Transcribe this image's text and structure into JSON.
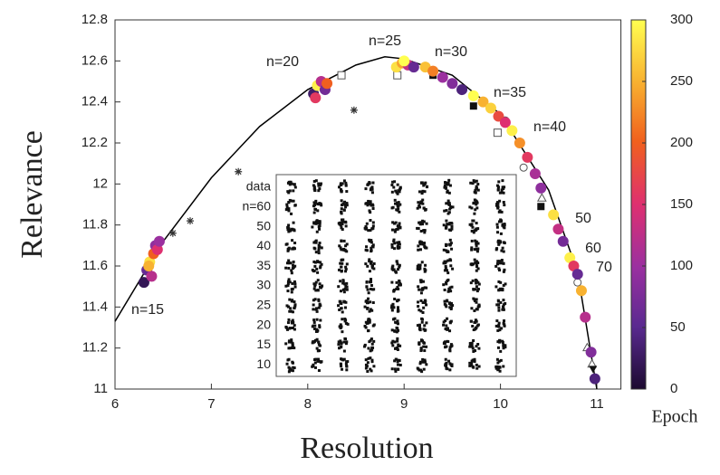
{
  "chart_data": {
    "type": "scatter",
    "x_label": "Resolution",
    "y_label": "Relevance",
    "xlim": [
      6,
      11.25
    ],
    "ylim": [
      11,
      12.8
    ],
    "xticks": [
      6,
      7,
      8,
      9,
      10,
      11
    ],
    "yticks": [
      11,
      11.2,
      11.4,
      11.6,
      11.8,
      12,
      12.2,
      12.4,
      12.6,
      12.8
    ],
    "curve": {
      "color": "#000000",
      "x": [
        6,
        6.5,
        7,
        7.5,
        8,
        8.5,
        8.8,
        9,
        9.5,
        10,
        10.5,
        10.8,
        11
      ],
      "y": [
        11.33,
        11.72,
        12.03,
        12.28,
        12.46,
        12.58,
        12.62,
        12.61,
        12.53,
        12.34,
        11.97,
        11.57,
        11.0
      ]
    },
    "points": {
      "x": [
        6.3,
        6.33,
        6.36,
        6.38,
        6.4,
        6.42,
        6.44,
        6.46,
        6.35,
        8.06,
        8.1,
        8.14,
        8.18,
        8.2,
        8.08,
        8.92,
        8.98,
        9.04,
        9.1,
        9.0,
        9.22,
        9.3,
        9.4,
        9.5,
        9.6,
        9.72,
        9.82,
        9.9,
        9.98,
        10.05,
        10.12,
        10.2,
        10.28,
        10.36,
        10.42,
        10.55,
        10.6,
        10.65,
        10.72,
        10.76,
        10.8,
        10.84,
        10.88,
        10.94,
        10.98
      ],
      "y": [
        11.52,
        11.58,
        11.62,
        11.55,
        11.66,
        11.7,
        11.68,
        11.72,
        11.6,
        12.44,
        12.48,
        12.5,
        12.46,
        12.49,
        12.42,
        12.57,
        12.59,
        12.58,
        12.57,
        12.6,
        12.57,
        12.55,
        12.52,
        12.49,
        12.46,
        12.43,
        12.4,
        12.37,
        12.33,
        12.3,
        12.26,
        12.2,
        12.13,
        12.05,
        11.98,
        11.85,
        11.78,
        11.72,
        11.64,
        11.6,
        11.56,
        11.48,
        11.35,
        11.18,
        11.05
      ],
      "epoch": [
        20,
        60,
        280,
        120,
        200,
        90,
        150,
        100,
        250,
        30,
        290,
        120,
        70,
        200,
        160,
        280,
        240,
        130,
        60,
        300,
        260,
        220,
        100,
        80,
        40,
        300,
        250,
        270,
        180,
        150,
        290,
        230,
        160,
        110,
        90,
        280,
        130,
        70,
        290,
        160,
        60,
        250,
        120,
        80,
        40
      ]
    },
    "markers": [
      {
        "shape": "asterisk",
        "x": [
          6.6,
          6.78,
          7.28,
          8.48
        ],
        "y": [
          11.76,
          11.82,
          12.06,
          12.36
        ]
      },
      {
        "shape": "open-square",
        "x": [
          8.35,
          8.93,
          9.97
        ],
        "y": [
          12.53,
          12.53,
          12.25
        ]
      },
      {
        "shape": "filled-square",
        "x": [
          9.72,
          10.42,
          9.3
        ],
        "y": [
          12.38,
          11.89,
          12.53
        ]
      },
      {
        "shape": "open-circle",
        "x": [
          10.24,
          10.8,
          10.05
        ],
        "y": [
          12.08,
          11.52,
          12.31
        ]
      },
      {
        "shape": "open-triangle",
        "x": [
          10.43,
          10.9,
          10.95
        ],
        "y": [
          11.93,
          11.2,
          11.12
        ]
      },
      {
        "shape": "down-triangle",
        "x": [
          10.98,
          10.96
        ],
        "y": [
          11.05,
          11.1
        ]
      }
    ],
    "annotations": [
      "n=15",
      "n=20",
      "n=25",
      "n=30",
      "n=35",
      "n=40",
      "50",
      "60",
      "70"
    ],
    "colorbar": {
      "label": "Epoch",
      "lim": [
        0,
        300
      ],
      "ticks": [
        0,
        50,
        100,
        150,
        200,
        250,
        300
      ]
    },
    "inset": {
      "row_labels": [
        "data",
        "n=60",
        "50",
        "40",
        "35",
        "30",
        "25",
        "20",
        "15",
        "10"
      ]
    }
  }
}
